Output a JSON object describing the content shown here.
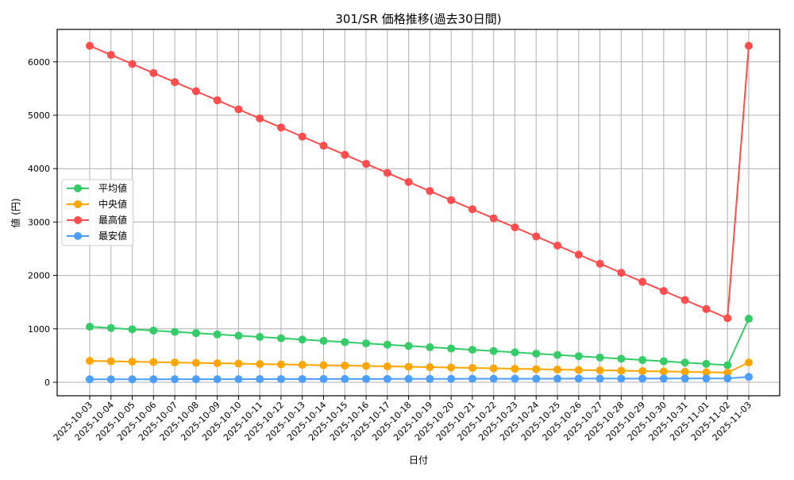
{
  "chart_data": {
    "type": "line",
    "title": "301/SR 価格推移(過去30日間)",
    "xlabel": "日付",
    "ylabel": "値 (円)",
    "ylim": [
      -250,
      6620
    ],
    "yticks": [
      0,
      1000,
      2000,
      3000,
      4000,
      5000,
      6000
    ],
    "grid": true,
    "legend_position": "center left",
    "x": [
      "2025-10-03",
      "2025-10-04",
      "2025-10-05",
      "2025-10-06",
      "2025-10-07",
      "2025-10-08",
      "2025-10-09",
      "2025-10-10",
      "2025-10-11",
      "2025-10-12",
      "2025-10-13",
      "2025-10-14",
      "2025-10-15",
      "2025-10-16",
      "2025-10-17",
      "2025-10-18",
      "2025-10-19",
      "2025-10-20",
      "2025-10-21",
      "2025-10-22",
      "2025-10-23",
      "2025-10-24",
      "2025-10-25",
      "2025-10-26",
      "2025-10-27",
      "2025-10-28",
      "2025-10-29",
      "2025-10-30",
      "2025-10-31",
      "2025-11-01",
      "2025-11-02",
      "2025-11-03"
    ],
    "series": [
      {
        "name": "平均値",
        "color": "#33cc66",
        "values": [
          1040,
          1016,
          992,
          968,
          944,
          920,
          896,
          872,
          848,
          824,
          800,
          776,
          752,
          728,
          704,
          680,
          656,
          632,
          608,
          584,
          560,
          536,
          512,
          488,
          464,
          440,
          416,
          392,
          368,
          344,
          320,
          1190
        ]
      },
      {
        "name": "中央値",
        "color": "#ffa500",
        "values": [
          400,
          393,
          385,
          378,
          371,
          363,
          356,
          349,
          341,
          334,
          327,
          319,
          312,
          305,
          297,
          290,
          283,
          275,
          268,
          261,
          253,
          246,
          239,
          231,
          224,
          217,
          209,
          202,
          195,
          187,
          180,
          370
        ]
      },
      {
        "name": "最高値",
        "color": "#ff4d4d",
        "values": [
          6300,
          6130,
          5960,
          5790,
          5620,
          5450,
          5280,
          5110,
          4940,
          4770,
          4600,
          4430,
          4260,
          4090,
          3920,
          3750,
          3580,
          3410,
          3240,
          3070,
          2900,
          2730,
          2560,
          2390,
          2220,
          2050,
          1880,
          1710,
          1540,
          1370,
          1200,
          6300
        ]
      },
      {
        "name": "最安値",
        "color": "#4d9fff",
        "values": [
          55,
          55,
          56,
          56,
          57,
          57,
          58,
          58,
          59,
          60,
          60,
          61,
          61,
          62,
          62,
          63,
          64,
          64,
          65,
          65,
          66,
          66,
          67,
          68,
          68,
          69,
          69,
          70,
          70,
          71,
          72,
          100
        ]
      }
    ]
  }
}
